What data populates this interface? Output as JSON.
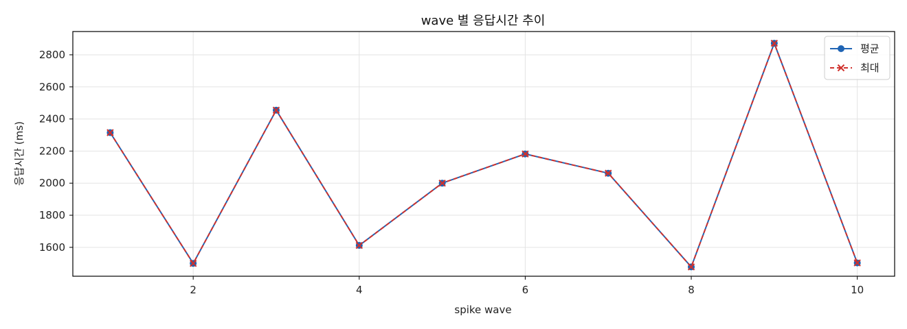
{
  "chart_data": {
    "type": "line",
    "title": "wave 별 응답시간 추이",
    "xlabel": "spike wave",
    "ylabel": "응답시간 (ms)",
    "x": [
      1,
      2,
      3,
      4,
      5,
      6,
      7,
      8,
      9,
      10
    ],
    "xlim": [
      0.55,
      10.45
    ],
    "ylim": [
      1420,
      2945
    ],
    "xticks": [
      2,
      4,
      6,
      8,
      10
    ],
    "yticks": [
      1600,
      1800,
      2000,
      2200,
      2400,
      2600,
      2800
    ],
    "grid": true,
    "legend_position": "top-right",
    "series": [
      {
        "name": "평균",
        "values": [
          2315,
          1500,
          2455,
          1612,
          2000,
          2182,
          2062,
          1478,
          2872,
          1503
        ],
        "color": "#1f64b4",
        "style": "solid",
        "marker": "circle"
      },
      {
        "name": "최대",
        "values": [
          2315,
          1500,
          2455,
          1612,
          2000,
          2182,
          2062,
          1478,
          2872,
          1503
        ],
        "color": "#d0312d",
        "style": "dashed",
        "marker": "x"
      }
    ]
  }
}
